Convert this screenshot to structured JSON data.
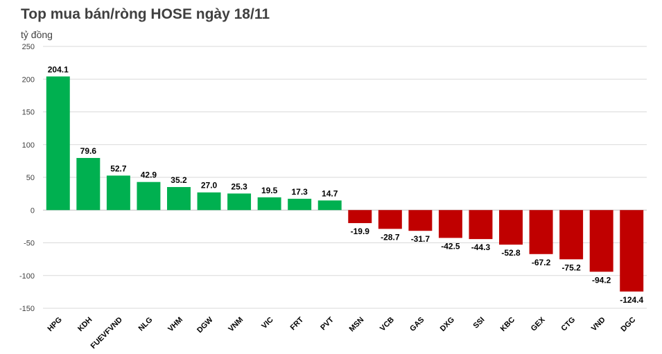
{
  "chart_data": {
    "type": "bar",
    "title": "Top mua bán/ròng HOSE ngày 18/11",
    "ylabel": "tỷ đồng",
    "xlabel": "",
    "ylim": [
      -150,
      250
    ],
    "yticks": [
      250,
      200,
      150,
      100,
      50,
      0,
      -50,
      -100,
      -150
    ],
    "grid": true,
    "categories": [
      "HPG",
      "KDH",
      "FUEVFVND",
      "NLG",
      "VHM",
      "DGW",
      "VNM",
      "VIC",
      "FRT",
      "PVT",
      "MSN",
      "VCB",
      "GAS",
      "DXG",
      "SSI",
      "KBC",
      "GEX",
      "CTG",
      "VND",
      "DGC"
    ],
    "values": [
      204.1,
      79.6,
      52.7,
      42.9,
      35.2,
      27.0,
      25.3,
      19.5,
      17.3,
      14.7,
      -19.9,
      -28.7,
      -31.7,
      -42.5,
      -44.3,
      -52.8,
      -67.2,
      -75.2,
      -94.2,
      -124.4
    ],
    "labels": [
      "204.1",
      "79.6",
      "52.7",
      "42.9",
      "35.2",
      "27.0",
      "25.3",
      "19.5",
      "17.3",
      "14.7",
      "-19.9",
      "-28.7",
      "-31.7",
      "-42.5",
      "-44.3",
      "-52.8",
      "-67.2",
      "-75.2",
      "-94.2",
      "-124.4"
    ],
    "colors": {
      "positive": "#00b050",
      "negative": "#c00000",
      "grid": "#d9d9d9",
      "axis": "#bfbfbf"
    }
  }
}
